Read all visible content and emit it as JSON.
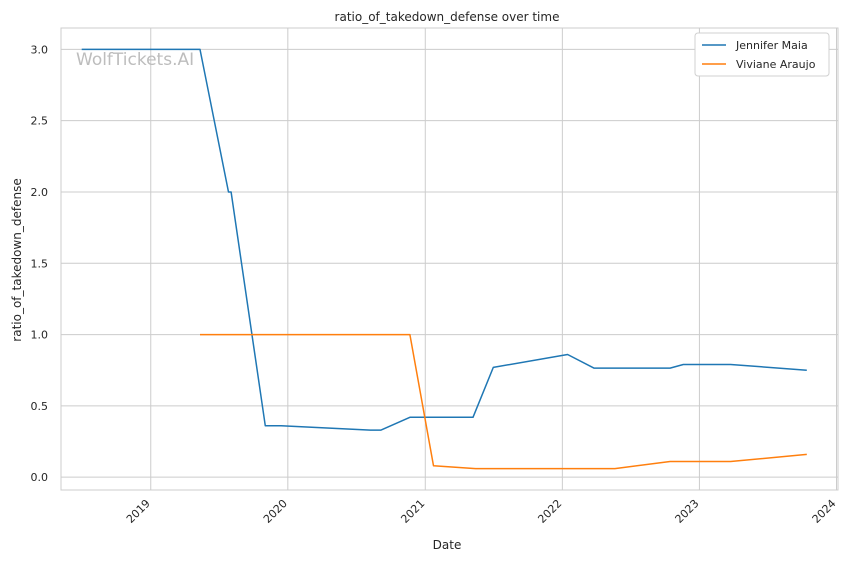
{
  "chart_data": {
    "type": "line",
    "title": "ratio_of_takedown_defense over time",
    "xlabel": "Date",
    "ylabel": "ratio_of_takedown_defense",
    "watermark": "WolfTickets.AI",
    "xlim": [
      "2018-05-07",
      "2024-01-05"
    ],
    "ylim": [
      -0.09,
      3.15
    ],
    "x_ticks": [
      "2019-01-01",
      "2020-01-01",
      "2021-01-01",
      "2022-01-01",
      "2023-01-01",
      "2024-01-01"
    ],
    "x_tick_labels": [
      "2019",
      "2020",
      "2021",
      "2022",
      "2023",
      "2024"
    ],
    "y_ticks": [
      0.0,
      0.5,
      1.0,
      1.5,
      2.0,
      2.5,
      3.0
    ],
    "y_tick_labels": [
      "0.0",
      "0.5",
      "1.0",
      "1.5",
      "2.0",
      "2.5",
      "3.0"
    ],
    "grid": true,
    "legend_position": "top-right",
    "series": [
      {
        "name": "Jennifer Maia",
        "color": "#1f77b4",
        "x": [
          "2018-07-01",
          "2019-05-12",
          "2019-07-27",
          "2019-08-03",
          "2019-11-02",
          "2019-12-14",
          "2020-08-08",
          "2020-09-05",
          "2020-11-21",
          "2021-05-08",
          "2021-07-01",
          "2022-01-15",
          "2022-03-26",
          "2022-10-15",
          "2022-11-19",
          "2023-03-25",
          "2023-10-14"
        ],
        "y": [
          3.0,
          3.0,
          2.0,
          2.0,
          0.36,
          0.36,
          0.33,
          0.33,
          0.42,
          0.42,
          0.77,
          0.86,
          0.765,
          0.765,
          0.79,
          0.79,
          0.75
        ]
      },
      {
        "name": "Viviane Araujo",
        "color": "#ff7f0e",
        "x": [
          "2019-05-12",
          "2020-11-21",
          "2021-01-23",
          "2021-05-15",
          "2022-05-21",
          "2022-10-15",
          "2023-03-25",
          "2023-10-14"
        ],
        "y": [
          1.0,
          1.0,
          0.08,
          0.06,
          0.06,
          0.11,
          0.11,
          0.16
        ]
      }
    ]
  }
}
